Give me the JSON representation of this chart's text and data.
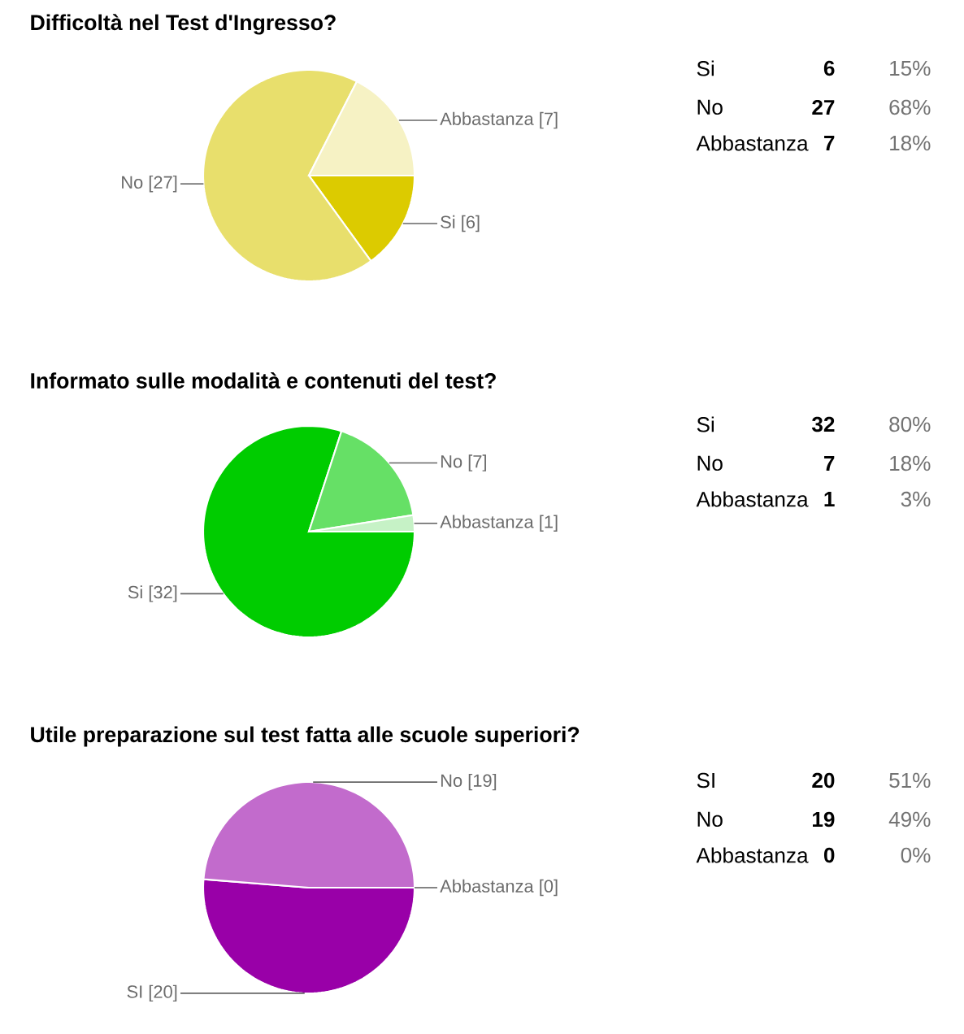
{
  "chart_data": [
    {
      "type": "pie",
      "title": "Difficoltà nel Test d'Ingresso?",
      "categories": [
        "Si",
        "No",
        "Abbastanza"
      ],
      "values": [
        6,
        27,
        7
      ],
      "colors": [
        "#dccb00",
        "#e8df6c",
        "#f6f2c4"
      ],
      "value_labels": [
        "[6]",
        "[27]",
        "[7]"
      ],
      "annotations": [
        "6",
        "15%",
        "27",
        "68%",
        "7",
        "18%"
      ]
    },
    {
      "type": "pie",
      "title": "Informato sulle modalità e contenuti del test?",
      "categories": [
        "Si",
        "No",
        "Abbastanza"
      ],
      "values": [
        32,
        7,
        1
      ],
      "colors": [
        "#00cc00",
        "#66e066",
        "#c6f2c6"
      ],
      "value_labels": [
        "[32]",
        "[7]",
        "[1]"
      ],
      "annotations": [
        "32",
        "80%",
        "7",
        "18%",
        "1",
        "3%"
      ]
    },
    {
      "type": "pie",
      "title": "Utile preparazione sul test fatta alle scuole superiori?",
      "categories": [
        "SI",
        "No",
        "Abbastanza"
      ],
      "values": [
        20,
        19,
        0
      ],
      "colors": [
        "#9900a8",
        "#c26bcc",
        null
      ],
      "value_labels": [
        "[20]",
        "[19]",
        "[0]"
      ],
      "annotations": [
        "20",
        "51%",
        "19",
        "49%",
        "0",
        "0%"
      ]
    }
  ]
}
